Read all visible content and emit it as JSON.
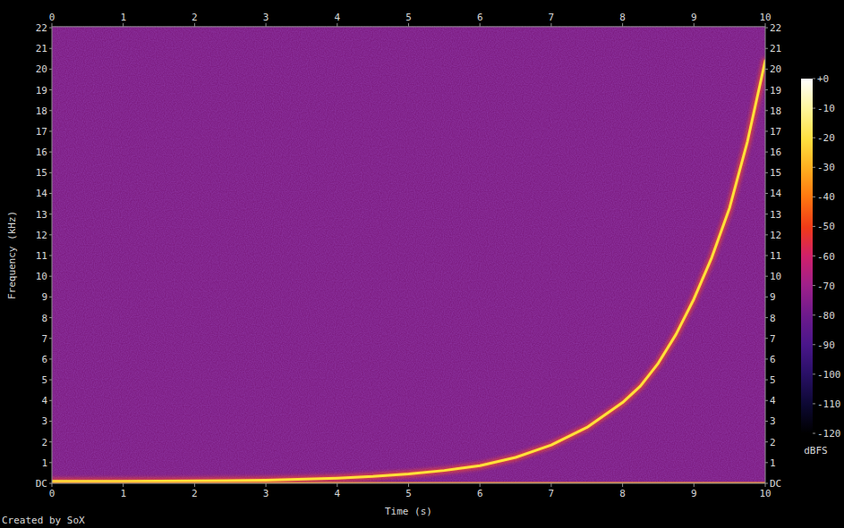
{
  "chart_data": {
    "type": "spectrogram",
    "x_label": "Time (s)",
    "y_label": "Frequency (kHz)",
    "credit": "Created by SoX",
    "xlim": [
      0,
      10
    ],
    "xticks": [
      0,
      1,
      2,
      3,
      4,
      5,
      6,
      7,
      8,
      9,
      10
    ],
    "ylim": [
      0,
      22.05
    ],
    "yticks": [
      {
        "value": 0,
        "label": "DC"
      },
      1,
      2,
      3,
      4,
      5,
      6,
      7,
      8,
      9,
      10,
      11,
      12,
      13,
      14,
      15,
      16,
      17,
      18,
      19,
      20,
      21,
      22
    ],
    "series": [
      {
        "color": "#ffe23a",
        "x": [
          0,
          1,
          2,
          3,
          4,
          4.5,
          5,
          5.5,
          6,
          6.5,
          7,
          7.5,
          8,
          8.25,
          8.5,
          8.75,
          9,
          9.25,
          9.5,
          9.75,
          10
        ],
        "values": [
          0.1,
          0.1,
          0.12,
          0.15,
          0.25,
          0.33,
          0.45,
          0.62,
          0.85,
          1.25,
          1.85,
          2.7,
          3.9,
          4.7,
          5.8,
          7.2,
          8.9,
          10.9,
          13.3,
          16.5,
          20.4
        ]
      },
      {
        "color": "#ff9a30",
        "x": [
          0,
          10
        ],
        "values": [
          0,
          0
        ]
      }
    ],
    "colorbar": {
      "label": "dBFS",
      "range": [
        -120,
        0
      ],
      "ticks": [
        {
          "value": 0,
          "label": "+0"
        },
        -10,
        -20,
        -30,
        -40,
        -50,
        -60,
        -70,
        -80,
        -90,
        -100,
        -110,
        -120
      ]
    }
  }
}
